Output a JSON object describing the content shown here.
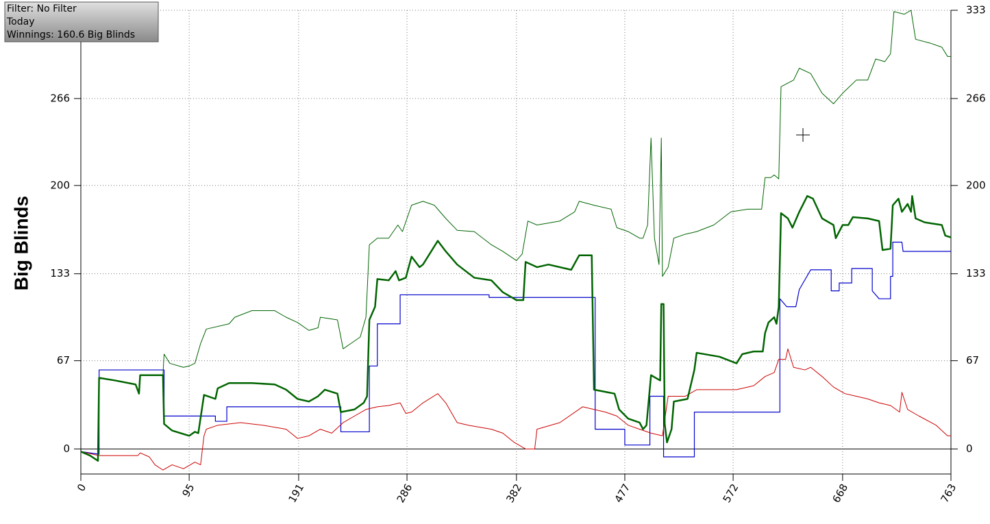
{
  "chart_data": {
    "type": "line",
    "annotations": [
      "Filter: No Filter",
      "Today",
      "Winnings: 160.6 Big Blinds"
    ],
    "ylabel": "Big Blinds",
    "xlim": [
      0,
      763
    ],
    "ylim": [
      -19,
      333
    ],
    "xticks": [
      0,
      95,
      191,
      286,
      382,
      477,
      572,
      668,
      763
    ],
    "yticks": [
      0,
      67,
      133,
      200,
      266,
      333
    ],
    "grid": true,
    "series": [
      {
        "color": "#0000cc",
        "linewidth": 1.2,
        "x": [
          0,
          16,
          16,
          73,
          73,
          118,
          118,
          128,
          128,
          228,
          228,
          253,
          253,
          260,
          260,
          280,
          280,
          358,
          358,
          451,
          451,
          477,
          477,
          499,
          499,
          511,
          511,
          538,
          538,
          613,
          613,
          619,
          627,
          630,
          640,
          658,
          658,
          665,
          665,
          676,
          676,
          694,
          694,
          700,
          710,
          710,
          712,
          712,
          720,
          721,
          763
        ],
        "values": [
          -2,
          -4,
          60,
          60,
          25,
          25,
          21,
          21,
          32,
          32,
          13,
          13,
          63,
          63,
          95,
          95,
          117,
          117,
          115,
          115,
          15,
          15,
          3,
          3,
          40,
          40,
          -6,
          -6,
          28,
          28,
          114,
          108,
          108,
          121,
          136,
          136,
          120,
          120,
          126,
          126,
          137,
          137,
          120,
          114,
          114,
          131,
          131,
          157,
          157,
          150,
          150
        ]
      },
      {
        "color": "#cc0000",
        "linewidth": 1,
        "x": [
          0,
          16,
          50,
          52,
          60,
          65,
          72,
          80,
          90,
          100,
          105,
          108,
          110,
          120,
          140,
          160,
          180,
          190,
          200,
          210,
          220,
          230,
          240,
          250,
          260,
          270,
          280,
          285,
          290,
          300,
          313,
          320,
          330,
          340,
          360,
          370,
          380,
          390,
          398,
          400,
          420,
          440,
          450,
          460,
          470,
          480,
          490,
          500,
          510,
          515,
          530,
          540,
          560,
          575,
          590,
          600,
          608,
          612,
          618,
          620,
          625,
          635,
          640,
          650,
          660,
          670,
          680,
          690,
          700,
          710,
          718,
          720,
          725,
          735,
          750,
          760,
          763
        ],
        "values": [
          -2,
          -5,
          -5,
          -3,
          -6,
          -12,
          -16,
          -12,
          -15,
          -10,
          -12,
          10,
          15,
          18,
          20,
          18,
          15,
          8,
          10,
          15,
          12,
          20,
          25,
          30,
          32,
          33,
          35,
          27,
          28,
          35,
          42,
          35,
          20,
          18,
          15,
          12,
          5,
          0,
          0,
          15,
          20,
          32,
          30,
          28,
          25,
          18,
          15,
          12,
          10,
          40,
          40,
          45,
          45,
          45,
          48,
          55,
          58,
          68,
          68,
          76,
          62,
          60,
          62,
          55,
          47,
          42,
          40,
          38,
          35,
          33,
          28,
          43,
          30,
          25,
          18,
          10,
          10
        ]
      },
      {
        "color": "#006400",
        "linewidth": 1,
        "x": [
          0,
          8,
          15,
          16,
          30,
          48,
          51,
          52,
          72,
          73,
          78,
          90,
          95,
          100,
          105,
          110,
          130,
          135,
          150,
          170,
          180,
          190,
          200,
          208,
          210,
          225,
          228,
          230,
          245,
          250,
          253,
          260,
          270,
          278,
          282,
          290,
          300,
          310,
          320,
          330,
          345,
          360,
          370,
          382,
          387,
          392,
          400,
          420,
          433,
          437,
          450,
          465,
          470,
          480,
          490,
          493,
          497,
          500,
          503,
          507,
          509,
          510,
          515,
          520,
          530,
          540,
          555,
          570,
          585,
          597,
          600,
          605,
          608,
          612,
          614,
          625,
          630,
          640,
          650,
          660,
          668,
          680,
          690,
          697,
          705,
          710,
          713,
          722,
          728,
          732,
          745,
          755,
          760,
          763
        ],
        "values": [
          -2,
          -5,
          -9,
          54,
          52,
          49,
          42,
          56,
          56,
          72,
          65,
          62,
          63,
          65,
          80,
          91,
          95,
          100,
          105,
          105,
          100,
          96,
          90,
          92,
          100,
          98,
          85,
          76,
          85,
          100,
          155,
          160,
          160,
          170,
          165,
          185,
          188,
          185,
          175,
          166,
          165,
          155,
          150,
          143,
          148,
          173,
          170,
          173,
          180,
          188,
          185,
          182,
          168,
          165,
          160,
          160,
          170,
          236,
          160,
          140,
          236,
          131,
          138,
          160,
          163,
          165,
          170,
          180,
          182,
          182,
          206,
          206,
          208,
          205,
          275,
          280,
          289,
          285,
          270,
          262,
          270,
          280,
          280,
          296,
          294,
          300,
          332,
          330,
          333,
          311,
          308,
          305,
          298,
          298
        ]
      },
      {
        "color": "#006400",
        "linewidth": 2.5,
        "x": [
          0,
          8,
          15,
          16,
          30,
          48,
          51,
          52,
          72,
          73,
          80,
          95,
          100,
          103,
          108,
          118,
          120,
          130,
          150,
          170,
          180,
          190,
          200,
          208,
          214,
          225,
          228,
          240,
          248,
          251,
          253,
          258,
          260,
          270,
          276,
          279,
          285,
          290,
          297,
          300,
          313,
          320,
          325,
          330,
          345,
          360,
          370,
          382,
          388,
          390,
          400,
          410,
          430,
          437,
          448,
          450,
          468,
          472,
          480,
          490,
          493,
          496,
          500,
          508,
          509,
          511,
          512,
          514,
          518,
          520,
          532,
          538,
          540,
          560,
          575,
          580,
          590,
          598,
          600,
          603,
          608,
          610,
          612,
          614,
          620,
          624,
          630,
          637,
          642,
          650,
          660,
          662,
          668,
          673,
          677,
          690,
          700,
          703,
          710,
          712,
          717,
          720,
          725,
          728,
          729,
          732,
          740,
          755,
          758,
          763
        ],
        "values": [
          -2,
          -5,
          -9,
          54,
          52,
          49,
          42,
          56,
          56,
          19,
          14,
          10,
          13,
          12,
          41,
          38,
          46,
          50,
          50,
          49,
          45,
          38,
          36,
          40,
          45,
          42,
          28,
          30,
          35,
          40,
          98,
          108,
          129,
          128,
          135,
          128,
          130,
          146,
          138,
          140,
          158,
          150,
          145,
          140,
          130,
          128,
          119,
          113,
          113,
          142,
          138,
          140,
          136,
          147,
          147,
          45,
          42,
          30,
          23,
          20,
          15,
          18,
          56,
          52,
          110,
          110,
          19,
          5,
          15,
          36,
          38,
          60,
          73,
          70,
          65,
          72,
          74,
          74,
          88,
          96,
          100,
          95,
          108,
          179,
          175,
          168,
          180,
          192,
          190,
          175,
          170,
          160,
          170,
          170,
          176,
          175,
          173,
          151,
          152,
          185,
          190,
          180,
          186,
          180,
          192,
          175,
          172,
          170,
          162,
          160.6
        ]
      }
    ]
  }
}
